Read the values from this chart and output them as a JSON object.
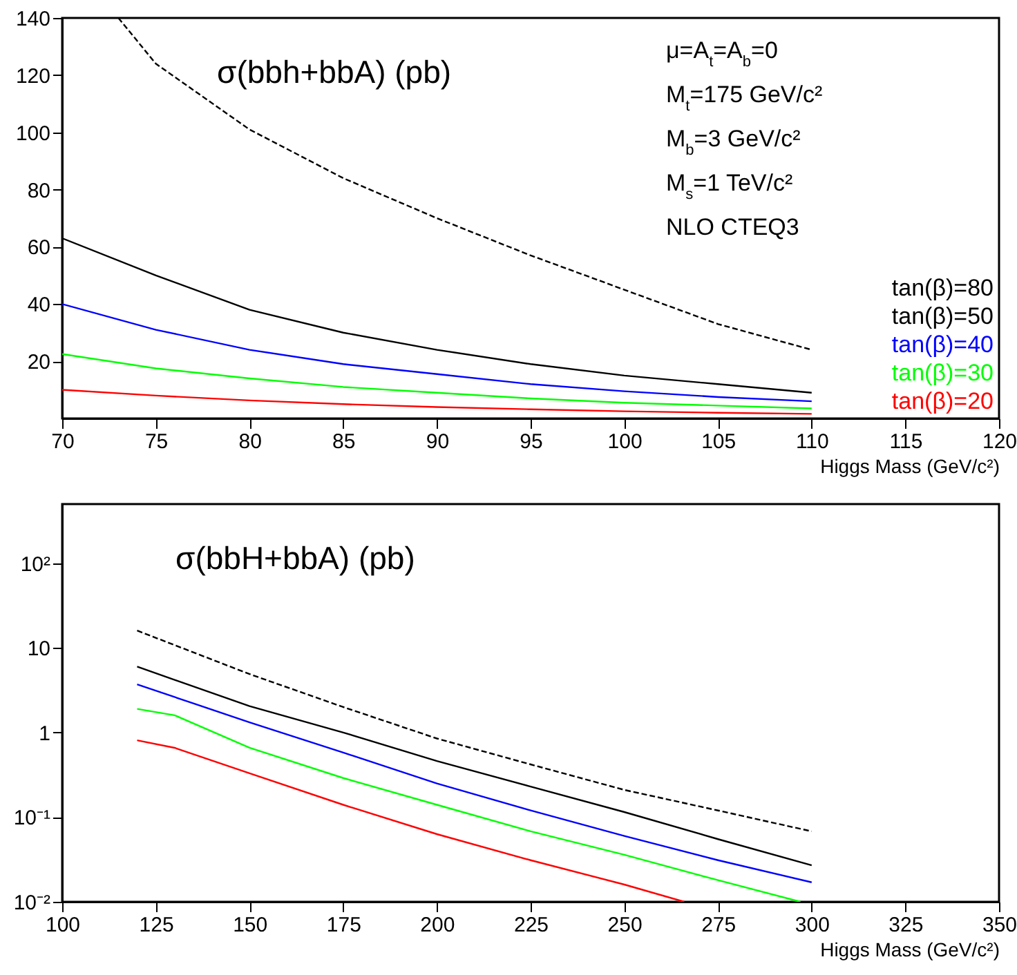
{
  "chart_data": [
    {
      "type": "line",
      "title": "σ(bbh+bbA) (pb)",
      "xlabel": "Higgs Mass (GeV/c²)",
      "annotations": [
        "μ=A$_{t}$=A$_{b}$=0",
        "M$_{t}$=175 GeV/c²",
        "M$_{b}$=3 GeV/c²",
        "M$_{s}$=1 TeV/c²",
        "NLO CTEQ3"
      ],
      "x": [
        70,
        75,
        80,
        85,
        90,
        95,
        100,
        105,
        110
      ],
      "series": [
        {
          "name": "tan(β)=80",
          "color": "#000000",
          "line_style": "dashed",
          "x": [
            73,
            75,
            80,
            85,
            90,
            95,
            100,
            105,
            110
          ],
          "values": [
            140,
            124,
            101,
            84,
            70,
            57,
            45,
            33,
            24
          ]
        },
        {
          "name": "tan(β)=50",
          "color": "#000000",
          "line_style": "solid",
          "values": [
            63,
            50,
            38,
            30,
            24,
            19,
            15,
            12,
            9
          ]
        },
        {
          "name": "tan(β)=40",
          "color": "#0000ff",
          "line_style": "solid",
          "values": [
            40,
            31,
            24,
            19,
            15.5,
            12,
            9.5,
            7.5,
            6
          ]
        },
        {
          "name": "tan(β)=30",
          "color": "#00ff00",
          "line_style": "solid",
          "values": [
            22.5,
            17.5,
            14,
            11,
            9,
            7,
            5.5,
            4.5,
            3.5
          ]
        },
        {
          "name": "tan(β)=20",
          "color": "#ff0000",
          "line_style": "solid",
          "values": [
            10,
            8,
            6.3,
            5,
            4,
            3.2,
            2.5,
            2,
            1.6
          ]
        }
      ],
      "xlim": [
        70,
        120
      ],
      "xticks": [
        70,
        75,
        80,
        85,
        90,
        95,
        100,
        105,
        110,
        115,
        120
      ],
      "ylim": [
        0,
        140
      ],
      "yticks": [
        20,
        40,
        60,
        80,
        100,
        120,
        140
      ],
      "grid": false
    },
    {
      "type": "line",
      "title": "σ(bbH+bbA) (pb)",
      "xlabel": "Higgs Mass (GeV/c²)",
      "x": [
        120,
        150,
        175,
        200,
        225,
        250,
        275,
        300
      ],
      "series": [
        {
          "color": "#000000",
          "line_style": "dashed",
          "values": [
            16,
            4.9,
            2.0,
            0.85,
            0.42,
            0.21,
            0.12,
            0.068
          ]
        },
        {
          "color": "#000000",
          "line_style": "solid",
          "values": [
            6.0,
            2.05,
            1.0,
            0.46,
            0.23,
            0.115,
            0.055,
            0.027
          ]
        },
        {
          "color": "#0000ff",
          "line_style": "solid",
          "values": [
            3.7,
            1.32,
            0.58,
            0.25,
            0.12,
            0.06,
            0.031,
            0.017
          ]
        },
        {
          "color": "#00ff00",
          "line_style": "solid",
          "x": [
            120,
            130,
            150,
            175,
            200,
            225,
            250,
            275,
            297
          ],
          "values": [
            1.9,
            1.6,
            0.66,
            0.29,
            0.14,
            0.068,
            0.036,
            0.018,
            0.01
          ]
        },
        {
          "color": "#ff0000",
          "line_style": "solid",
          "x": [
            120,
            130,
            150,
            175,
            200,
            225,
            250,
            266
          ],
          "values": [
            0.81,
            0.66,
            0.33,
            0.14,
            0.063,
            0.031,
            0.016,
            0.01
          ]
        }
      ],
      "xlim": [
        100,
        350
      ],
      "xticks": [
        100,
        125,
        150,
        175,
        200,
        225,
        250,
        275,
        300,
        325,
        350
      ],
      "ylim": [
        0.01,
        500
      ],
      "yticks": [
        {
          "value": 0.01,
          "label": "10⁻²"
        },
        {
          "value": 0.1,
          "label": "10⁻¹"
        },
        {
          "value": 1,
          "label": "1"
        },
        {
          "value": 10,
          "label": "10"
        },
        {
          "value": 100,
          "label": "10²"
        }
      ],
      "log": true,
      "grid": false
    }
  ]
}
